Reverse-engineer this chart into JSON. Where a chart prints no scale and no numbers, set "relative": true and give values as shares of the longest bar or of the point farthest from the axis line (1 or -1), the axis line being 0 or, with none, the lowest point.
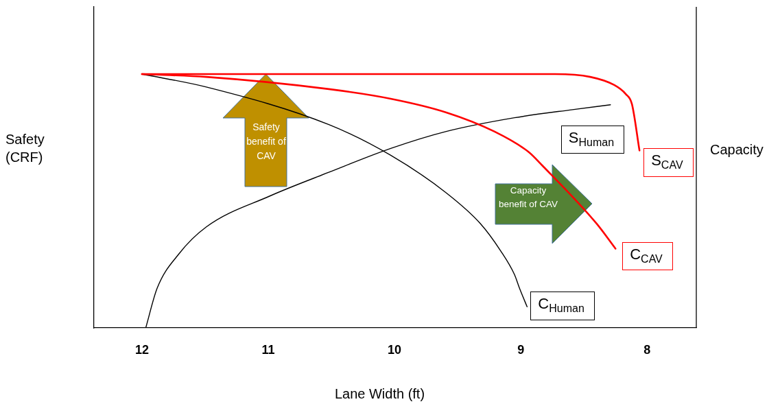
{
  "chart_data": {
    "type": "line",
    "relative": true,
    "xlabel": "Lane Width (ft)",
    "ylabel": "Safety (CRF)",
    "y2label": "Capacity",
    "xlim": [
      12.38,
      7.61
    ],
    "xticks": [
      12,
      11,
      10,
      9,
      8
    ],
    "grid": false,
    "marker": "none",
    "line_style": "solid",
    "annotations": [
      "Safety benefit of CAV",
      "Capacity benefit of CAV"
    ],
    "series": [
      {
        "name": "S$_{CAV}$",
        "color": "#ff0000",
        "x": [
          12,
          11,
          10,
          9.2,
          8.73,
          8.45,
          8.26,
          8.17,
          8.12,
          8.06
        ],
        "values": [
          1,
          1,
          1,
          1,
          1,
          0.989,
          0.957,
          0.922,
          0.882,
          0.699
        ]
      },
      {
        "name": "C$_{CAV}$",
        "color": "#ff0000",
        "x": [
          12,
          11.49,
          10.52,
          10.03,
          9.59,
          9.21,
          8.94,
          8.83,
          8.4,
          8.25
        ],
        "values": [
          1,
          0.989,
          0.941,
          0.903,
          0.849,
          0.774,
          0.694,
          0.64,
          0.411,
          0.312
        ]
      },
      {
        "name": "S$_{Human}$",
        "color": "#000000",
        "x": [
          11.97,
          11.88,
          11.71,
          11.49,
          10.99,
          10.52,
          10.03,
          9.59,
          9.05,
          8.59,
          8.29
        ],
        "values": [
          0,
          0.156,
          0.29,
          0.398,
          0.519,
          0.613,
          0.707,
          0.774,
          0.828,
          0.86,
          0.879
        ]
      },
      {
        "name": "C$_{Human}$",
        "color": "#000000",
        "x": [
          12,
          11.49,
          10.52,
          10.03,
          9.59,
          9.32,
          9.16,
          9.05,
          9.01,
          8.95
        ],
        "values": [
          1,
          0.949,
          0.801,
          0.68,
          0.532,
          0.411,
          0.304,
          0.21,
          0.156,
          0.083
        ]
      }
    ]
  }
}
